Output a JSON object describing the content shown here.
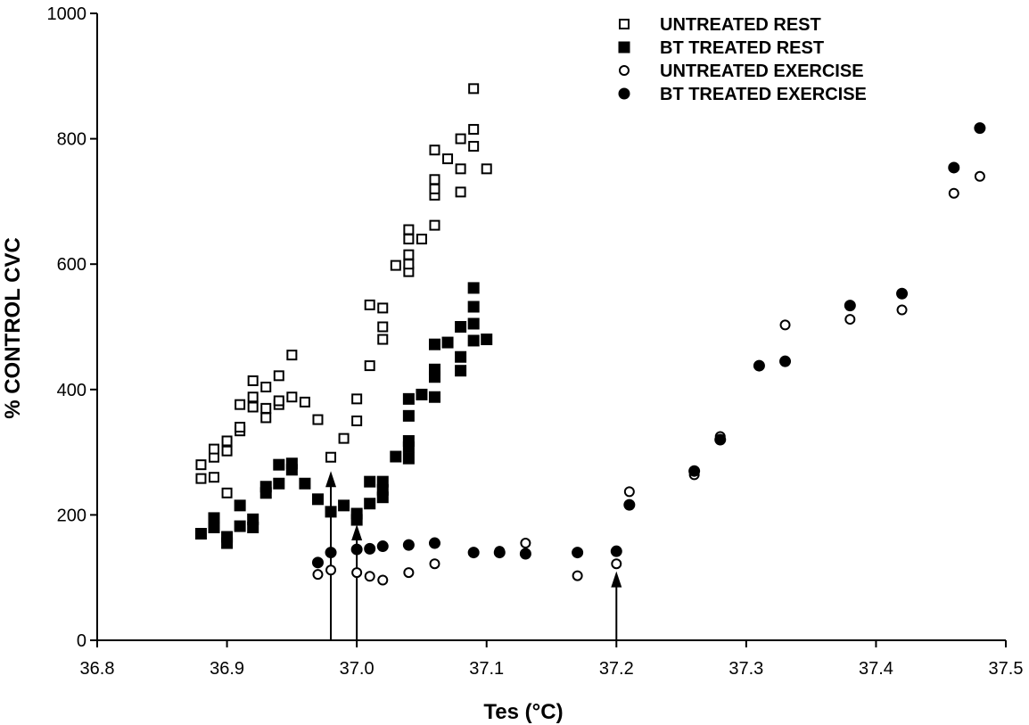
{
  "chart_data": {
    "type": "scatter",
    "title": "",
    "xlabel": "Tes (°C)",
    "ylabel": "% CONTROL CVC",
    "xlim": [
      36.8,
      37.5
    ],
    "ylim": [
      0,
      1000
    ],
    "xticks": [
      "36.8",
      "36.9",
      "37.0",
      "37.1",
      "37.2",
      "37.3",
      "37.4",
      "37.5"
    ],
    "yticks": [
      "0",
      "200",
      "400",
      "600",
      "800",
      "1000"
    ],
    "grid": false,
    "legend_position": "top-right",
    "series": [
      {
        "name": "UNTREATED REST",
        "marker": "open-square",
        "points": [
          [
            36.88,
            258
          ],
          [
            36.88,
            280
          ],
          [
            36.89,
            260
          ],
          [
            36.89,
            292
          ],
          [
            36.89,
            305
          ],
          [
            36.9,
            235
          ],
          [
            36.9,
            302
          ],
          [
            36.9,
            318
          ],
          [
            36.91,
            334
          ],
          [
            36.91,
            340
          ],
          [
            36.91,
            376
          ],
          [
            36.92,
            372
          ],
          [
            36.92,
            388
          ],
          [
            36.92,
            414
          ],
          [
            36.93,
            355
          ],
          [
            36.93,
            370
          ],
          [
            36.93,
            404
          ],
          [
            36.94,
            376
          ],
          [
            36.94,
            382
          ],
          [
            36.94,
            422
          ],
          [
            36.95,
            388
          ],
          [
            36.95,
            455
          ],
          [
            36.96,
            380
          ],
          [
            36.97,
            352
          ],
          [
            36.98,
            292
          ],
          [
            36.99,
            322
          ],
          [
            37.0,
            350
          ],
          [
            37.0,
            385
          ],
          [
            37.01,
            438
          ],
          [
            37.01,
            535
          ],
          [
            37.02,
            480
          ],
          [
            37.02,
            500
          ],
          [
            37.02,
            530
          ],
          [
            37.03,
            598
          ],
          [
            37.04,
            588
          ],
          [
            37.04,
            600
          ],
          [
            37.04,
            615
          ],
          [
            37.04,
            640
          ],
          [
            37.04,
            655
          ],
          [
            37.05,
            640
          ],
          [
            37.06,
            662
          ],
          [
            37.06,
            710
          ],
          [
            37.06,
            720
          ],
          [
            37.06,
            735
          ],
          [
            37.06,
            782
          ],
          [
            37.07,
            768
          ],
          [
            37.08,
            715
          ],
          [
            37.08,
            752
          ],
          [
            37.08,
            800
          ],
          [
            37.09,
            788
          ],
          [
            37.09,
            815
          ],
          [
            37.09,
            880
          ],
          [
            37.1,
            752
          ]
        ]
      },
      {
        "name": "BT TREATED REST",
        "marker": "filled-square",
        "points": [
          [
            36.88,
            170
          ],
          [
            36.89,
            180
          ],
          [
            36.89,
            195
          ],
          [
            36.9,
            155
          ],
          [
            36.9,
            165
          ],
          [
            36.91,
            182
          ],
          [
            36.91,
            215
          ],
          [
            36.92,
            180
          ],
          [
            36.92,
            193
          ],
          [
            36.93,
            235
          ],
          [
            36.93,
            245
          ],
          [
            36.94,
            250
          ],
          [
            36.94,
            280
          ],
          [
            36.95,
            272
          ],
          [
            36.95,
            282
          ],
          [
            36.96,
            250
          ],
          [
            36.97,
            225
          ],
          [
            36.98,
            205
          ],
          [
            36.99,
            215
          ],
          [
            37.0,
            192
          ],
          [
            37.0,
            202
          ],
          [
            37.01,
            218
          ],
          [
            37.01,
            253
          ],
          [
            37.02,
            228
          ],
          [
            37.02,
            240
          ],
          [
            37.02,
            253
          ],
          [
            37.03,
            293
          ],
          [
            37.04,
            290
          ],
          [
            37.04,
            308
          ],
          [
            37.04,
            318
          ],
          [
            37.04,
            358
          ],
          [
            37.04,
            385
          ],
          [
            37.05,
            392
          ],
          [
            37.06,
            388
          ],
          [
            37.06,
            420
          ],
          [
            37.06,
            432
          ],
          [
            37.06,
            472
          ],
          [
            37.07,
            475
          ],
          [
            37.08,
            430
          ],
          [
            37.08,
            452
          ],
          [
            37.08,
            500
          ],
          [
            37.09,
            478
          ],
          [
            37.09,
            505
          ],
          [
            37.09,
            532
          ],
          [
            37.09,
            562
          ],
          [
            37.1,
            480
          ]
        ]
      },
      {
        "name": "UNTREATED EXERCISE",
        "marker": "open-circle",
        "points": [
          [
            36.97,
            105
          ],
          [
            36.98,
            112
          ],
          [
            37.0,
            108
          ],
          [
            37.01,
            102
          ],
          [
            37.02,
            96
          ],
          [
            37.04,
            108
          ],
          [
            37.06,
            122
          ],
          [
            37.09,
            140
          ],
          [
            37.11,
            142
          ],
          [
            37.13,
            155
          ],
          [
            37.17,
            103
          ],
          [
            37.2,
            122
          ],
          [
            37.21,
            237
          ],
          [
            37.26,
            264
          ],
          [
            37.28,
            325
          ],
          [
            37.33,
            503
          ],
          [
            37.38,
            512
          ],
          [
            37.42,
            527
          ],
          [
            37.46,
            713
          ],
          [
            37.48,
            740
          ]
        ]
      },
      {
        "name": "BT TREATED EXERCISE",
        "marker": "filled-circle",
        "points": [
          [
            36.97,
            124
          ],
          [
            36.98,
            140
          ],
          [
            37.0,
            145
          ],
          [
            37.01,
            146
          ],
          [
            37.02,
            150
          ],
          [
            37.04,
            152
          ],
          [
            37.06,
            155
          ],
          [
            37.09,
            140
          ],
          [
            37.11,
            140
          ],
          [
            37.13,
            138
          ],
          [
            37.17,
            140
          ],
          [
            37.2,
            142
          ],
          [
            37.21,
            216
          ],
          [
            37.26,
            270
          ],
          [
            37.28,
            320
          ],
          [
            37.31,
            438
          ],
          [
            37.33,
            445
          ],
          [
            37.38,
            534
          ],
          [
            37.42,
            553
          ],
          [
            37.46,
            754
          ],
          [
            37.48,
            817
          ]
        ]
      }
    ],
    "annotations": [
      {
        "type": "arrow",
        "x": 36.98,
        "from_y": 0,
        "to_y": 270
      },
      {
        "type": "arrow",
        "x": 37.0,
        "from_y": 0,
        "to_y": 185
      },
      {
        "type": "arrow",
        "x": 37.2,
        "from_y": 0,
        "to_y": 110
      }
    ]
  }
}
